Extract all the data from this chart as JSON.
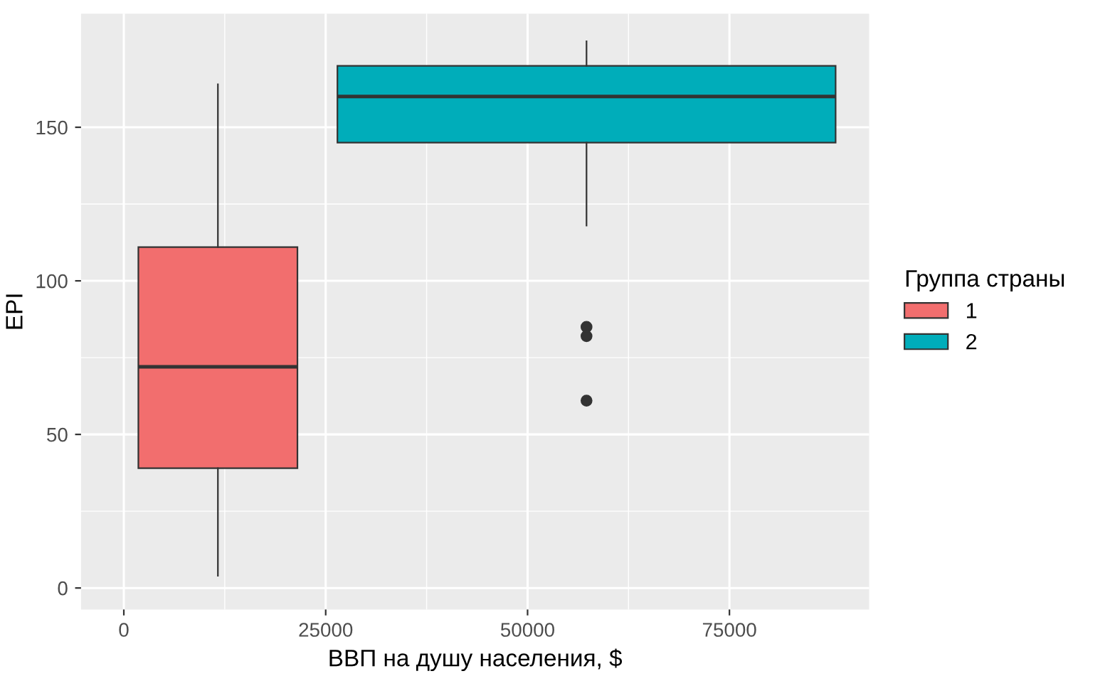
{
  "chart_data": {
    "type": "box",
    "xlabel": "ВВП на душу населения, $",
    "ylabel": "EPI",
    "legend_title": "Группа страны",
    "legend": "right",
    "grid": true,
    "xlim": [
      -5300,
      92300
    ],
    "ylim": [
      -7,
      187
    ],
    "xticks": [
      0,
      25000,
      50000,
      75000
    ],
    "yticks": [
      0,
      50,
      100,
      150
    ],
    "x": [
      11650,
      57300
    ],
    "series": [
      {
        "name": "1",
        "color": "#f26e6e",
        "boxes": [
          {
            "low": 4,
            "q1": 39,
            "median": 72,
            "q3": 111,
            "high": 164
          },
          null
        ]
      },
      {
        "name": "2",
        "color": "#00adba",
        "boxes": [
          null,
          {
            "low": 118,
            "q1": 145,
            "median": 160,
            "q3": 170,
            "high": 178,
            "outliers": [
              85,
              82,
              61
            ]
          }
        ]
      }
    ]
  }
}
